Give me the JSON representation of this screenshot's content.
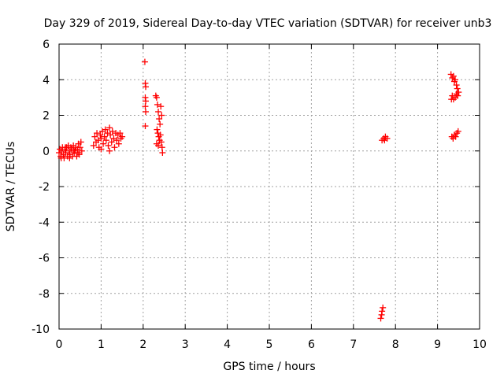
{
  "chart_data": {
    "type": "scatter",
    "title": "Day 329 of 2019, Sidereal Day-to-day VTEC variation (SDTVAR) for receiver unb3",
    "xlabel": "GPS time / hours",
    "ylabel": "SDTVAR / TECUs",
    "xlim": [
      0,
      10
    ],
    "ylim": [
      -10,
      6
    ],
    "x_ticks": [
      "0",
      "1",
      "2",
      "3",
      "4",
      "5",
      "6",
      "7",
      "8",
      "9",
      "10"
    ],
    "y_ticks": [
      "-10",
      "-8",
      "-6",
      "-4",
      "-2",
      "0",
      "2",
      "4",
      "6"
    ],
    "grid": true,
    "marker": "+",
    "color": "#ff0000",
    "series": [
      {
        "points": [
          [
            0.0,
            -0.1
          ],
          [
            0.02,
            0.1
          ],
          [
            0.04,
            -0.3
          ],
          [
            0.06,
            0.0
          ],
          [
            0.08,
            0.2
          ],
          [
            0.1,
            -0.2
          ],
          [
            0.12,
            -0.4
          ],
          [
            0.14,
            0.1
          ],
          [
            0.16,
            -0.1
          ],
          [
            0.18,
            0.2
          ],
          [
            0.2,
            -0.3
          ],
          [
            0.22,
            0.3
          ],
          [
            0.24,
            0.0
          ],
          [
            0.26,
            -0.2
          ],
          [
            0.28,
            0.2
          ],
          [
            0.3,
            0.1
          ],
          [
            0.32,
            -0.3
          ],
          [
            0.34,
            0.3
          ],
          [
            0.36,
            -0.1
          ],
          [
            0.38,
            0.0
          ],
          [
            0.4,
            0.2
          ],
          [
            0.42,
            -0.3
          ],
          [
            0.44,
            0.1
          ],
          [
            0.46,
            0.4
          ],
          [
            0.48,
            -0.2
          ],
          [
            0.5,
            0.2
          ],
          [
            0.52,
            0.5
          ],
          [
            0.54,
            0.0
          ],
          [
            0.05,
            -0.4
          ],
          [
            0.15,
            0.2
          ],
          [
            0.25,
            -0.4
          ],
          [
            0.35,
            0.0
          ],
          [
            0.45,
            -0.1
          ],
          [
            0.82,
            0.3
          ],
          [
            0.85,
            0.8
          ],
          [
            0.88,
            0.5
          ],
          [
            0.9,
            1.0
          ],
          [
            0.93,
            0.6
          ],
          [
            0.95,
            0.2
          ],
          [
            0.98,
            0.9
          ],
          [
            1.0,
            0.7
          ],
          [
            1.03,
            1.1
          ],
          [
            1.05,
            0.4
          ],
          [
            1.08,
            0.8
          ],
          [
            1.1,
            1.2
          ],
          [
            1.12,
            0.6
          ],
          [
            1.15,
            1.0
          ],
          [
            1.17,
            0.3
          ],
          [
            1.2,
            1.3
          ],
          [
            1.22,
            0.9
          ],
          [
            1.25,
            0.5
          ],
          [
            1.27,
            1.1
          ],
          [
            1.3,
            0.7
          ],
          [
            1.32,
            0.2
          ],
          [
            1.35,
            1.0
          ],
          [
            1.37,
            0.6
          ],
          [
            1.4,
            0.9
          ],
          [
            1.42,
            0.4
          ],
          [
            1.45,
            1.0
          ],
          [
            1.47,
            0.7
          ],
          [
            1.5,
            0.8
          ],
          [
            1.0,
            0.1
          ],
          [
            1.2,
            0.0
          ],
          [
            2.04,
            5.0
          ],
          [
            2.05,
            3.8
          ],
          [
            2.06,
            3.6
          ],
          [
            2.05,
            3.0
          ],
          [
            2.06,
            2.8
          ],
          [
            2.05,
            2.5
          ],
          [
            2.06,
            2.2
          ],
          [
            2.05,
            1.4
          ],
          [
            2.3,
            3.1
          ],
          [
            2.32,
            3.0
          ],
          [
            2.34,
            2.6
          ],
          [
            2.36,
            2.2
          ],
          [
            2.38,
            1.8
          ],
          [
            2.4,
            1.5
          ],
          [
            2.42,
            2.5
          ],
          [
            2.44,
            2.0
          ],
          [
            2.33,
            1.2
          ],
          [
            2.35,
            1.0
          ],
          [
            2.37,
            0.8
          ],
          [
            2.39,
            0.6
          ],
          [
            2.41,
            0.9
          ],
          [
            2.43,
            0.5
          ],
          [
            2.45,
            0.2
          ],
          [
            2.46,
            -0.1
          ],
          [
            2.32,
            0.4
          ],
          [
            2.36,
            0.3
          ],
          [
            7.65,
            -9.4
          ],
          [
            7.67,
            -9.2
          ],
          [
            7.68,
            -9.0
          ],
          [
            7.7,
            -8.8
          ],
          [
            7.68,
            0.6
          ],
          [
            7.72,
            0.7
          ],
          [
            7.76,
            0.8
          ],
          [
            7.8,
            0.7
          ],
          [
            7.74,
            0.6
          ],
          [
            9.32,
            4.3
          ],
          [
            9.35,
            4.1
          ],
          [
            9.38,
            4.2
          ],
          [
            9.4,
            3.9
          ],
          [
            9.42,
            4.0
          ],
          [
            9.45,
            3.7
          ],
          [
            9.47,
            3.5
          ],
          [
            9.5,
            3.3
          ],
          [
            9.48,
            3.1
          ],
          [
            9.45,
            3.2
          ],
          [
            9.42,
            3.0
          ],
          [
            9.38,
            2.9
          ],
          [
            9.35,
            3.1
          ],
          [
            9.33,
            2.9
          ],
          [
            9.34,
            0.8
          ],
          [
            9.37,
            0.7
          ],
          [
            9.4,
            0.9
          ],
          [
            9.43,
            0.8
          ],
          [
            9.46,
            1.0
          ],
          [
            9.49,
            1.1
          ]
        ]
      }
    ]
  }
}
